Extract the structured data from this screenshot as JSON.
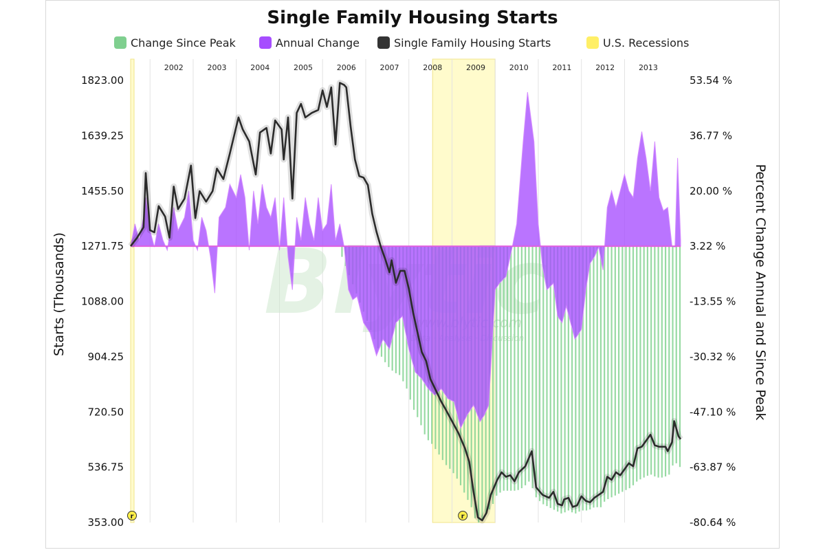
{
  "chart_data": {
    "type": "line",
    "title": "Single Family Housing Starts",
    "legend": [
      {
        "name": "Change Since Peak",
        "color": "#7fcf8f"
      },
      {
        "name": "Annual Change",
        "color": "#a64dff"
      },
      {
        "name": "Single Family Housing Starts",
        "color": "#333333"
      },
      {
        "name": "U.S. Recessions",
        "color": "#ffef66"
      }
    ],
    "ylabel": "Starts (Thousands)",
    "ylabel_right": "Percent Change Annual and Since Peak",
    "ylim": [
      353,
      1823
    ],
    "ylim_right": [
      -80.64,
      53.54
    ],
    "yticks": [
      "353.00",
      "536.75",
      "720.50",
      "904.25",
      "1088.00",
      "1271.75",
      "1455.50",
      "1639.25",
      "1823.00"
    ],
    "yticks_right": [
      "-80.64 %",
      "-63.87 %",
      "-47.10 %",
      "-30.32 %",
      "-13.55 %",
      "3.22 %",
      "20.00 %",
      "36.77 %",
      "53.54 %"
    ],
    "x_range": [
      2001.0,
      2013.75
    ],
    "years": [
      "2002",
      "2003",
      "2004",
      "2005",
      "2006",
      "2007",
      "2008",
      "2009",
      "2010",
      "2011",
      "2012",
      "2013"
    ],
    "recessions": [
      [
        2001.0,
        2001.08
      ],
      [
        2008.0,
        2009.45
      ]
    ],
    "recession_markers": [
      "r",
      "r"
    ],
    "watermark": {
      "main": "Blytic",
      "url": "www.blytic.com",
      "tag": "Data · Analysis · Discussion"
    },
    "series": [
      {
        "name": "Single Family Housing Starts",
        "points": [
          [
            2001.0,
            1272
          ],
          [
            2001.15,
            1300
          ],
          [
            2001.3,
            1335
          ],
          [
            2001.35,
            1515
          ],
          [
            2001.45,
            1325
          ],
          [
            2001.55,
            1318
          ],
          [
            2001.65,
            1405
          ],
          [
            2001.8,
            1370
          ],
          [
            2001.9,
            1300
          ],
          [
            2002.0,
            1470
          ],
          [
            2002.1,
            1395
          ],
          [
            2002.25,
            1430
          ],
          [
            2002.4,
            1540
          ],
          [
            2002.5,
            1365
          ],
          [
            2002.6,
            1455
          ],
          [
            2002.75,
            1420
          ],
          [
            2002.9,
            1455
          ],
          [
            2003.0,
            1530
          ],
          [
            2003.15,
            1495
          ],
          [
            2003.3,
            1580
          ],
          [
            2003.4,
            1640
          ],
          [
            2003.5,
            1700
          ],
          [
            2003.6,
            1660
          ],
          [
            2003.75,
            1620
          ],
          [
            2003.9,
            1510
          ],
          [
            2004.0,
            1650
          ],
          [
            2004.15,
            1665
          ],
          [
            2004.25,
            1580
          ],
          [
            2004.35,
            1690
          ],
          [
            2004.5,
            1660
          ],
          [
            2004.55,
            1560
          ],
          [
            2004.65,
            1700
          ],
          [
            2004.75,
            1430
          ],
          [
            2004.85,
            1715
          ],
          [
            2004.95,
            1745
          ],
          [
            2005.05,
            1700
          ],
          [
            2005.2,
            1715
          ],
          [
            2005.35,
            1725
          ],
          [
            2005.45,
            1790
          ],
          [
            2005.55,
            1735
          ],
          [
            2005.65,
            1800
          ],
          [
            2005.75,
            1610
          ],
          [
            2005.85,
            1815
          ],
          [
            2005.95,
            1808
          ],
          [
            2006.0,
            1800
          ],
          [
            2006.1,
            1670
          ],
          [
            2006.2,
            1560
          ],
          [
            2006.3,
            1505
          ],
          [
            2006.4,
            1500
          ],
          [
            2006.5,
            1475
          ],
          [
            2006.6,
            1380
          ],
          [
            2006.7,
            1320
          ],
          [
            2006.8,
            1270
          ],
          [
            2006.9,
            1230
          ],
          [
            2007.0,
            1185
          ],
          [
            2007.05,
            1225
          ],
          [
            2007.15,
            1150
          ],
          [
            2007.25,
            1190
          ],
          [
            2007.35,
            1190
          ],
          [
            2007.45,
            1130
          ],
          [
            2007.55,
            1050
          ],
          [
            2007.65,
            985
          ],
          [
            2007.75,
            920
          ],
          [
            2007.85,
            890
          ],
          [
            2007.95,
            830
          ],
          [
            2008.05,
            800
          ],
          [
            2008.2,
            755
          ],
          [
            2008.3,
            730
          ],
          [
            2008.45,
            690
          ],
          [
            2008.6,
            650
          ],
          [
            2008.75,
            600
          ],
          [
            2008.85,
            555
          ],
          [
            2008.95,
            455
          ],
          [
            2009.05,
            370
          ],
          [
            2009.15,
            360
          ],
          [
            2009.25,
            385
          ],
          [
            2009.35,
            445
          ],
          [
            2009.5,
            495
          ],
          [
            2009.6,
            520
          ],
          [
            2009.7,
            505
          ],
          [
            2009.8,
            510
          ],
          [
            2009.9,
            490
          ],
          [
            2010.0,
            520
          ],
          [
            2010.15,
            540
          ],
          [
            2010.3,
            590
          ],
          [
            2010.4,
            470
          ],
          [
            2010.55,
            445
          ],
          [
            2010.7,
            435
          ],
          [
            2010.8,
            455
          ],
          [
            2010.9,
            415
          ],
          [
            2011.0,
            410
          ],
          [
            2011.05,
            430
          ],
          [
            2011.15,
            435
          ],
          [
            2011.25,
            405
          ],
          [
            2011.35,
            410
          ],
          [
            2011.45,
            440
          ],
          [
            2011.55,
            425
          ],
          [
            2011.65,
            420
          ],
          [
            2011.75,
            435
          ],
          [
            2011.85,
            445
          ],
          [
            2011.95,
            455
          ],
          [
            2012.05,
            505
          ],
          [
            2012.15,
            495
          ],
          [
            2012.25,
            520
          ],
          [
            2012.35,
            510
          ],
          [
            2012.45,
            530
          ],
          [
            2012.55,
            550
          ],
          [
            2012.65,
            540
          ],
          [
            2012.75,
            600
          ],
          [
            2012.85,
            605
          ],
          [
            2012.95,
            625
          ],
          [
            2013.05,
            645
          ],
          [
            2013.15,
            610
          ],
          [
            2013.25,
            605
          ],
          [
            2013.4,
            605
          ],
          [
            2013.45,
            590
          ],
          [
            2013.55,
            620
          ],
          [
            2013.6,
            690
          ],
          [
            2013.7,
            640
          ],
          [
            2013.75,
            630
          ]
        ]
      },
      {
        "name": "Annual Change",
        "points": [
          [
            2001.0,
            3.2
          ],
          [
            2001.1,
            10
          ],
          [
            2001.2,
            5
          ],
          [
            2001.3,
            12
          ],
          [
            2001.35,
            18
          ],
          [
            2001.45,
            8
          ],
          [
            2001.55,
            3
          ],
          [
            2001.65,
            10
          ],
          [
            2001.75,
            5
          ],
          [
            2001.85,
            2
          ],
          [
            2002.0,
            15
          ],
          [
            2002.1,
            8
          ],
          [
            2002.25,
            12
          ],
          [
            2002.35,
            20
          ],
          [
            2002.45,
            5
          ],
          [
            2002.55,
            2
          ],
          [
            2002.65,
            12
          ],
          [
            2002.75,
            8
          ],
          [
            2002.85,
            0
          ],
          [
            2002.95,
            -11
          ],
          [
            2003.05,
            12
          ],
          [
            2003.2,
            15
          ],
          [
            2003.3,
            22
          ],
          [
            2003.45,
            18
          ],
          [
            2003.55,
            25
          ],
          [
            2003.65,
            18
          ],
          [
            2003.75,
            2
          ],
          [
            2003.85,
            20
          ],
          [
            2003.95,
            10
          ],
          [
            2004.05,
            22
          ],
          [
            2004.15,
            15
          ],
          [
            2004.25,
            12
          ],
          [
            2004.35,
            18
          ],
          [
            2004.45,
            2
          ],
          [
            2004.55,
            18
          ],
          [
            2004.65,
            0
          ],
          [
            2004.75,
            -10
          ],
          [
            2004.85,
            12
          ],
          [
            2004.95,
            5
          ],
          [
            2005.05,
            18
          ],
          [
            2005.15,
            10
          ],
          [
            2005.25,
            5
          ],
          [
            2005.35,
            18
          ],
          [
            2005.45,
            8
          ],
          [
            2005.55,
            10
          ],
          [
            2005.65,
            22
          ],
          [
            2005.75,
            5
          ],
          [
            2005.85,
            10
          ],
          [
            2005.95,
            3
          ],
          [
            2006.05,
            -10
          ],
          [
            2006.15,
            -13
          ],
          [
            2006.25,
            -12
          ],
          [
            2006.4,
            -20
          ],
          [
            2006.55,
            -23
          ],
          [
            2006.7,
            -30
          ],
          [
            2006.85,
            -25
          ],
          [
            2007.0,
            -28
          ],
          [
            2007.15,
            -20
          ],
          [
            2007.3,
            -18
          ],
          [
            2007.45,
            -28
          ],
          [
            2007.6,
            -35
          ],
          [
            2007.75,
            -37
          ],
          [
            2007.9,
            -40
          ],
          [
            2008.05,
            -42
          ],
          [
            2008.2,
            -40
          ],
          [
            2008.35,
            -43
          ],
          [
            2008.5,
            -44
          ],
          [
            2008.65,
            -52
          ],
          [
            2008.8,
            -48
          ],
          [
            2008.95,
            -45
          ],
          [
            2009.1,
            -50
          ],
          [
            2009.2,
            -48
          ],
          [
            2009.3,
            -45
          ],
          [
            2009.45,
            -10
          ],
          [
            2009.55,
            -8
          ],
          [
            2009.7,
            -6
          ],
          [
            2009.85,
            3.2
          ],
          [
            2009.95,
            10
          ],
          [
            2010.1,
            35
          ],
          [
            2010.2,
            50
          ],
          [
            2010.35,
            35
          ],
          [
            2010.45,
            10
          ],
          [
            2010.55,
            -3
          ],
          [
            2010.65,
            -10
          ],
          [
            2010.8,
            -8
          ],
          [
            2010.9,
            -18
          ],
          [
            2011.0,
            -20
          ],
          [
            2011.1,
            -15
          ],
          [
            2011.2,
            -20
          ],
          [
            2011.3,
            -25
          ],
          [
            2011.45,
            -22
          ],
          [
            2011.55,
            -10
          ],
          [
            2011.65,
            -2
          ],
          [
            2011.75,
            0
          ],
          [
            2011.85,
            3
          ],
          [
            2011.95,
            -4
          ],
          [
            2012.05,
            15
          ],
          [
            2012.15,
            20
          ],
          [
            2012.25,
            15
          ],
          [
            2012.35,
            20
          ],
          [
            2012.45,
            25
          ],
          [
            2012.55,
            20
          ],
          [
            2012.65,
            18
          ],
          [
            2012.75,
            30
          ],
          [
            2012.85,
            38
          ],
          [
            2012.95,
            30
          ],
          [
            2013.05,
            20
          ],
          [
            2013.15,
            35
          ],
          [
            2013.25,
            18
          ],
          [
            2013.35,
            14
          ],
          [
            2013.45,
            15
          ],
          [
            2013.55,
            3.2
          ],
          [
            2013.62,
            3
          ],
          [
            2013.68,
            30
          ],
          [
            2013.75,
            5
          ]
        ]
      },
      {
        "name": "Change Since Peak",
        "points": [
          [
            2005.9,
            0
          ],
          [
            2006.05,
            -5
          ],
          [
            2006.2,
            -10
          ],
          [
            2006.35,
            -15
          ],
          [
            2006.5,
            -20
          ],
          [
            2006.65,
            -25
          ],
          [
            2006.8,
            -30
          ],
          [
            2006.95,
            -33
          ],
          [
            2007.1,
            -35
          ],
          [
            2007.25,
            -36
          ],
          [
            2007.4,
            -40
          ],
          [
            2007.55,
            -46
          ],
          [
            2007.7,
            -50
          ],
          [
            2007.85,
            -55
          ],
          [
            2008.0,
            -57
          ],
          [
            2008.15,
            -60
          ],
          [
            2008.3,
            -63
          ],
          [
            2008.45,
            -65
          ],
          [
            2008.6,
            -68
          ],
          [
            2008.75,
            -72
          ],
          [
            2008.9,
            -76
          ],
          [
            2009.0,
            -80
          ],
          [
            2009.1,
            -81
          ],
          [
            2009.25,
            -78
          ],
          [
            2009.4,
            -75
          ],
          [
            2009.5,
            -72
          ],
          [
            2009.65,
            -71
          ],
          [
            2009.8,
            -71
          ],
          [
            2009.95,
            -71
          ],
          [
            2010.1,
            -70
          ],
          [
            2010.25,
            -68
          ],
          [
            2010.4,
            -73
          ],
          [
            2010.55,
            -75
          ],
          [
            2010.7,
            -76
          ],
          [
            2010.85,
            -77
          ],
          [
            2011.0,
            -78
          ],
          [
            2011.15,
            -77
          ],
          [
            2011.3,
            -78
          ],
          [
            2011.45,
            -77
          ],
          [
            2011.6,
            -77
          ],
          [
            2011.75,
            -76
          ],
          [
            2011.9,
            -76
          ],
          [
            2012.0,
            -74
          ],
          [
            2012.15,
            -73
          ],
          [
            2012.3,
            -72
          ],
          [
            2012.45,
            -71
          ],
          [
            2012.6,
            -70
          ],
          [
            2012.75,
            -68
          ],
          [
            2012.9,
            -67
          ],
          [
            2013.05,
            -66
          ],
          [
            2013.2,
            -67
          ],
          [
            2013.35,
            -67
          ],
          [
            2013.5,
            -66
          ],
          [
            2013.6,
            -62
          ],
          [
            2013.75,
            -64
          ]
        ]
      }
    ]
  }
}
